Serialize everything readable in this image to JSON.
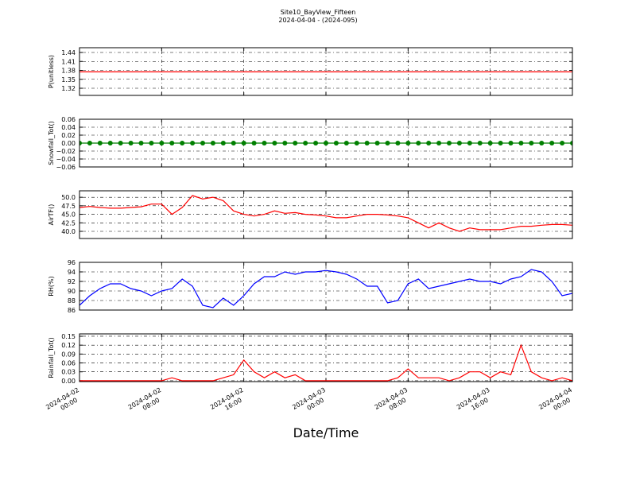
{
  "title": "Site10_BayView_Fifteen",
  "subtitle": "2024-04-04 - (2024-095)",
  "xlabel": "Date/Time",
  "chart_data": [
    {
      "type": "line",
      "ylabel": "P(unitless)",
      "color": "#ff0000",
      "grid": true,
      "xlim": [
        "2024-04-02 00:00",
        "2024-04-04 00:00"
      ],
      "ylim": [
        1.296,
        1.456
      ],
      "yticks": [
        1.32,
        1.35,
        1.38,
        1.41,
        1.44
      ],
      "x": [
        "2024-04-02 00:00",
        "2024-04-02 01:00",
        "2024-04-02 02:00",
        "2024-04-02 03:00",
        "2024-04-02 04:00",
        "2024-04-02 05:00",
        "2024-04-02 06:00",
        "2024-04-02 07:00",
        "2024-04-02 08:00",
        "2024-04-02 09:00",
        "2024-04-02 10:00",
        "2024-04-02 11:00",
        "2024-04-02 12:00",
        "2024-04-02 13:00",
        "2024-04-02 14:00",
        "2024-04-02 15:00",
        "2024-04-02 16:00",
        "2024-04-02 17:00",
        "2024-04-02 18:00",
        "2024-04-02 19:00",
        "2024-04-02 20:00",
        "2024-04-02 21:00",
        "2024-04-02 22:00",
        "2024-04-02 23:00",
        "2024-04-03 00:00",
        "2024-04-03 01:00",
        "2024-04-03 02:00",
        "2024-04-03 03:00",
        "2024-04-03 04:00",
        "2024-04-03 05:00",
        "2024-04-03 06:00",
        "2024-04-03 07:00",
        "2024-04-03 08:00",
        "2024-04-03 09:00",
        "2024-04-03 10:00",
        "2024-04-03 11:00",
        "2024-04-03 12:00",
        "2024-04-03 13:00",
        "2024-04-03 14:00",
        "2024-04-03 15:00",
        "2024-04-03 16:00",
        "2024-04-03 17:00",
        "2024-04-03 18:00",
        "2024-04-03 19:00",
        "2024-04-03 20:00",
        "2024-04-03 21:00",
        "2024-04-03 22:00",
        "2024-04-03 23:00",
        "2024-04-04 00:00"
      ],
      "values": [
        1.375,
        1.375,
        1.375,
        1.375,
        1.375,
        1.375,
        1.375,
        1.375,
        1.375,
        1.375,
        1.375,
        1.375,
        1.375,
        1.375,
        1.375,
        1.375,
        1.375,
        1.375,
        1.375,
        1.375,
        1.375,
        1.375,
        1.375,
        1.375,
        1.375,
        1.375,
        1.375,
        1.375,
        1.375,
        1.375,
        1.375,
        1.375,
        1.375,
        1.375,
        1.375,
        1.375,
        1.375,
        1.375,
        1.375,
        1.375,
        1.375,
        1.375,
        1.375,
        1.375,
        1.375,
        1.375,
        1.375,
        1.375,
        1.375
      ]
    },
    {
      "type": "line",
      "ylabel": "Snowfall_Tot()",
      "color": "#008000",
      "marker": "o",
      "grid": true,
      "xlim": [
        "2024-04-02 00:00",
        "2024-04-04 00:00"
      ],
      "ylim": [
        -0.06,
        0.06
      ],
      "yticks": [
        {
          "value": -0.06,
          "label": "−0.06"
        },
        {
          "value": -0.04,
          "label": "−0.04"
        },
        {
          "value": -0.02,
          "label": "−0.02"
        },
        {
          "value": 0,
          "label": "0.00"
        },
        {
          "value": 0.02,
          "label": "0.02"
        },
        {
          "value": 0.04,
          "label": "0.04"
        },
        {
          "value": 0.06,
          "label": "0.06"
        }
      ],
      "x": [
        "2024-04-02 00:00",
        "2024-04-02 01:00",
        "2024-04-02 02:00",
        "2024-04-02 03:00",
        "2024-04-02 04:00",
        "2024-04-02 05:00",
        "2024-04-02 06:00",
        "2024-04-02 07:00",
        "2024-04-02 08:00",
        "2024-04-02 09:00",
        "2024-04-02 10:00",
        "2024-04-02 11:00",
        "2024-04-02 12:00",
        "2024-04-02 13:00",
        "2024-04-02 14:00",
        "2024-04-02 15:00",
        "2024-04-02 16:00",
        "2024-04-02 17:00",
        "2024-04-02 18:00",
        "2024-04-02 19:00",
        "2024-04-02 20:00",
        "2024-04-02 21:00",
        "2024-04-02 22:00",
        "2024-04-02 23:00",
        "2024-04-03 00:00",
        "2024-04-03 01:00",
        "2024-04-03 02:00",
        "2024-04-03 03:00",
        "2024-04-03 04:00",
        "2024-04-03 05:00",
        "2024-04-03 06:00",
        "2024-04-03 07:00",
        "2024-04-03 08:00",
        "2024-04-03 09:00",
        "2024-04-03 10:00",
        "2024-04-03 11:00",
        "2024-04-03 12:00",
        "2024-04-03 13:00",
        "2024-04-03 14:00",
        "2024-04-03 15:00",
        "2024-04-03 16:00",
        "2024-04-03 17:00",
        "2024-04-03 18:00",
        "2024-04-03 19:00",
        "2024-04-03 20:00",
        "2024-04-03 21:00",
        "2024-04-03 22:00",
        "2024-04-03 23:00",
        "2024-04-04 00:00"
      ],
      "values": [
        0,
        0,
        0,
        0,
        0,
        0,
        0,
        0,
        0,
        0,
        0,
        0,
        0,
        0,
        0,
        0,
        0,
        0,
        0,
        0,
        0,
        0,
        0,
        0,
        0,
        0,
        0,
        0,
        0,
        0,
        0,
        0,
        0,
        0,
        0,
        0,
        0,
        0,
        0,
        0,
        0,
        0,
        0,
        0,
        0,
        0,
        0,
        0,
        0
      ]
    },
    {
      "type": "line",
      "ylabel": "AirTF()",
      "color": "#ff0000",
      "grid": true,
      "xlim": [
        "2024-04-02 00:00",
        "2024-04-04 00:00"
      ],
      "ylim": [
        37.9,
        51.9
      ],
      "yticks": [
        {
          "value": 40,
          "label": "40.0"
        },
        42.5,
        {
          "value": 45,
          "label": "45.0"
        },
        47.5,
        {
          "value": 50,
          "label": "50.0"
        }
      ],
      "x": [
        "2024-04-02 00:00",
        "2024-04-02 01:00",
        "2024-04-02 02:00",
        "2024-04-02 03:00",
        "2024-04-02 04:00",
        "2024-04-02 05:00",
        "2024-04-02 06:00",
        "2024-04-02 07:00",
        "2024-04-02 08:00",
        "2024-04-02 09:00",
        "2024-04-02 10:00",
        "2024-04-02 11:00",
        "2024-04-02 12:00",
        "2024-04-02 13:00",
        "2024-04-02 14:00",
        "2024-04-02 15:00",
        "2024-04-02 16:00",
        "2024-04-02 17:00",
        "2024-04-02 18:00",
        "2024-04-02 19:00",
        "2024-04-02 20:00",
        "2024-04-02 21:00",
        "2024-04-02 22:00",
        "2024-04-02 23:00",
        "2024-04-03 00:00",
        "2024-04-03 01:00",
        "2024-04-03 02:00",
        "2024-04-03 03:00",
        "2024-04-03 04:00",
        "2024-04-03 05:00",
        "2024-04-03 06:00",
        "2024-04-03 07:00",
        "2024-04-03 08:00",
        "2024-04-03 09:00",
        "2024-04-03 10:00",
        "2024-04-03 11:00",
        "2024-04-03 12:00",
        "2024-04-03 13:00",
        "2024-04-03 14:00",
        "2024-04-03 15:00",
        "2024-04-03 16:00",
        "2024-04-03 17:00",
        "2024-04-03 18:00",
        "2024-04-03 19:00",
        "2024-04-03 20:00",
        "2024-04-03 21:00",
        "2024-04-03 22:00",
        "2024-04-03 23:00",
        "2024-04-04 00:00"
      ],
      "values": [
        47,
        47.3,
        47,
        46.8,
        46.8,
        47,
        47.2,
        48,
        48,
        45,
        47,
        50.5,
        49.5,
        50,
        49,
        46,
        45,
        44.5,
        45,
        46,
        45.3,
        45.5,
        45,
        44.8,
        44.5,
        44,
        44,
        44.5,
        45,
        45,
        44.8,
        44.5,
        44,
        42.5,
        41,
        42.5,
        41,
        40,
        41,
        40.5,
        40.5,
        40.5,
        41,
        41.5,
        41.5,
        41.8,
        42,
        42,
        41.8
      ]
    },
    {
      "type": "line",
      "ylabel": "RH(%)",
      "color": "#0000ff",
      "grid": true,
      "xlim": [
        "2024-04-02 00:00",
        "2024-04-04 00:00"
      ],
      "ylim": [
        86,
        96
      ],
      "yticks": [
        86,
        88,
        90,
        92,
        94,
        96
      ],
      "x": [
        "2024-04-02 00:00",
        "2024-04-02 01:00",
        "2024-04-02 02:00",
        "2024-04-02 03:00",
        "2024-04-02 04:00",
        "2024-04-02 05:00",
        "2024-04-02 06:00",
        "2024-04-02 07:00",
        "2024-04-02 08:00",
        "2024-04-02 09:00",
        "2024-04-02 10:00",
        "2024-04-02 11:00",
        "2024-04-02 12:00",
        "2024-04-02 13:00",
        "2024-04-02 14:00",
        "2024-04-02 15:00",
        "2024-04-02 16:00",
        "2024-04-02 17:00",
        "2024-04-02 18:00",
        "2024-04-02 19:00",
        "2024-04-02 20:00",
        "2024-04-02 21:00",
        "2024-04-02 22:00",
        "2024-04-02 23:00",
        "2024-04-03 00:00",
        "2024-04-03 01:00",
        "2024-04-03 02:00",
        "2024-04-03 03:00",
        "2024-04-03 04:00",
        "2024-04-03 05:00",
        "2024-04-03 06:00",
        "2024-04-03 07:00",
        "2024-04-03 08:00",
        "2024-04-03 09:00",
        "2024-04-03 10:00",
        "2024-04-03 11:00",
        "2024-04-03 12:00",
        "2024-04-03 13:00",
        "2024-04-03 14:00",
        "2024-04-03 15:00",
        "2024-04-03 16:00",
        "2024-04-03 17:00",
        "2024-04-03 18:00",
        "2024-04-03 19:00",
        "2024-04-03 20:00",
        "2024-04-03 21:00",
        "2024-04-03 22:00",
        "2024-04-03 23:00",
        "2024-04-04 00:00"
      ],
      "values": [
        87,
        89,
        90.5,
        91.5,
        91.5,
        90.5,
        90,
        89,
        90,
        90.5,
        92.5,
        91,
        87,
        86.5,
        88.5,
        87,
        89,
        91.5,
        93,
        93,
        94,
        93.5,
        94,
        94,
        94.3,
        94,
        93.5,
        92.5,
        91,
        91,
        87.5,
        88,
        91.5,
        92.5,
        90.5,
        91,
        91.5,
        92,
        92.5,
        92,
        92,
        91.5,
        92.5,
        93,
        94.5,
        94,
        92,
        89,
        89.5
      ]
    },
    {
      "type": "line",
      "ylabel": "Rainfall_Tot()",
      "color": "#ff0000",
      "grid": true,
      "xlim": [
        "2024-04-02 00:00",
        "2024-04-04 00:00"
      ],
      "ylim": [
        -0.003,
        0.158
      ],
      "yticks": [
        {
          "value": 0,
          "label": "0.00"
        },
        {
          "value": 0.03,
          "label": "0.03"
        },
        {
          "value": 0.06,
          "label": "0.06"
        },
        {
          "value": 0.09,
          "label": "0.09"
        },
        {
          "value": 0.12,
          "label": "0.12"
        },
        0.15
      ],
      "xticks": [
        {
          "value": "2024-04-02 00:00",
          "label": "2024-04-02\n00:00"
        },
        {
          "value": "2024-04-02 08:00",
          "label": "2024-04-02\n08:00"
        },
        {
          "value": "2024-04-02 16:00",
          "label": "2024-04-02\n16:00"
        },
        {
          "value": "2024-04-03 00:00",
          "label": "2024-04-03\n00:00"
        },
        {
          "value": "2024-04-03 08:00",
          "label": "2024-04-03\n08:00"
        },
        {
          "value": "2024-04-03 16:00",
          "label": "2024-04-03\n16:00"
        },
        {
          "value": "2024-04-04 00:00",
          "label": "2024-04-04\n00:00"
        }
      ],
      "x": [
        "2024-04-02 00:00",
        "2024-04-02 01:00",
        "2024-04-02 02:00",
        "2024-04-02 03:00",
        "2024-04-02 04:00",
        "2024-04-02 05:00",
        "2024-04-02 06:00",
        "2024-04-02 07:00",
        "2024-04-02 08:00",
        "2024-04-02 09:00",
        "2024-04-02 10:00",
        "2024-04-02 11:00",
        "2024-04-02 12:00",
        "2024-04-02 13:00",
        "2024-04-02 14:00",
        "2024-04-02 15:00",
        "2024-04-02 16:00",
        "2024-04-02 17:00",
        "2024-04-02 18:00",
        "2024-04-02 19:00",
        "2024-04-02 20:00",
        "2024-04-02 21:00",
        "2024-04-02 22:00",
        "2024-04-02 23:00",
        "2024-04-03 00:00",
        "2024-04-03 01:00",
        "2024-04-03 02:00",
        "2024-04-03 03:00",
        "2024-04-03 04:00",
        "2024-04-03 05:00",
        "2024-04-03 06:00",
        "2024-04-03 07:00",
        "2024-04-03 08:00",
        "2024-04-03 09:00",
        "2024-04-03 10:00",
        "2024-04-03 11:00",
        "2024-04-03 12:00",
        "2024-04-03 13:00",
        "2024-04-03 14:00",
        "2024-04-03 15:00",
        "2024-04-03 16:00",
        "2024-04-03 17:00",
        "2024-04-03 18:00",
        "2024-04-03 19:00",
        "2024-04-03 20:00",
        "2024-04-03 21:00",
        "2024-04-03 22:00",
        "2024-04-03 23:00",
        "2024-04-04 00:00"
      ],
      "values": [
        0,
        0,
        0,
        0,
        0,
        0,
        0,
        0,
        0,
        0.01,
        0,
        0,
        0,
        0,
        0.01,
        0.02,
        0.07,
        0.03,
        0.01,
        0.03,
        0.01,
        0.02,
        0,
        0,
        0,
        0,
        0,
        0,
        0,
        0,
        0,
        0.01,
        0.04,
        0.01,
        0.01,
        0.01,
        0,
        0.01,
        0.03,
        0.03,
        0.01,
        0.03,
        0.02,
        0.12,
        0.03,
        0.01,
        0,
        0.01,
        0
      ]
    }
  ]
}
